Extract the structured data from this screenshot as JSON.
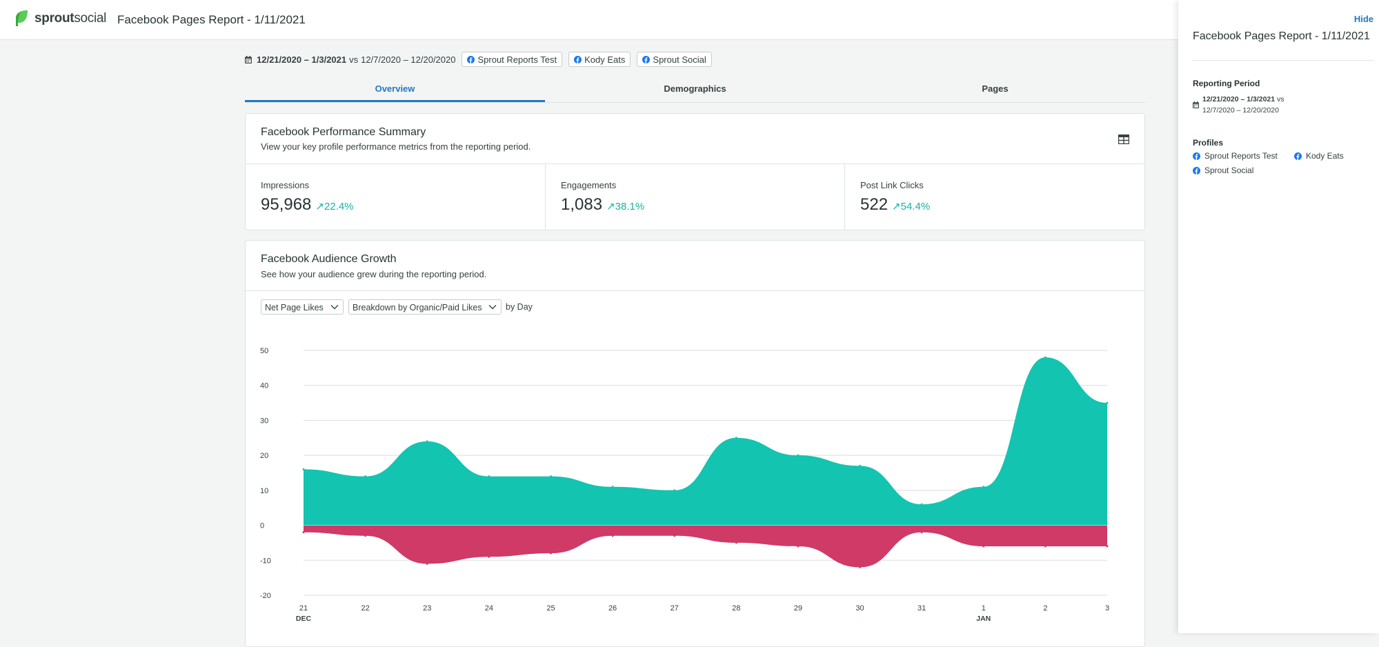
{
  "header": {
    "brand_bold": "sprout",
    "brand_regular": "social",
    "report_title": "Facebook Pages Report - 1/11/2021"
  },
  "filters": {
    "date_range": "12/21/2020 – 1/3/2021",
    "vs": "vs",
    "compare_range": "12/7/2020 – 12/20/2020",
    "profiles": [
      "Sprout Reports Test",
      "Kody Eats",
      "Sprout Social"
    ]
  },
  "tabs": [
    {
      "label": "Overview",
      "active": true
    },
    {
      "label": "Demographics",
      "active": false
    },
    {
      "label": "Pages",
      "active": false
    }
  ],
  "summary": {
    "title": "Facebook Performance Summary",
    "subtitle": "View your key profile performance metrics from the reporting period.",
    "metrics": [
      {
        "label": "Impressions",
        "value": "95,968",
        "change": "22.4%"
      },
      {
        "label": "Engagements",
        "value": "1,083",
        "change": "38.1%"
      },
      {
        "label": "Post Link Clicks",
        "value": "522",
        "change": "54.4%"
      }
    ]
  },
  "growth": {
    "title": "Facebook Audience Growth",
    "subtitle": "See how your audience grew during the reporting period.",
    "metric_select": "Net Page Likes",
    "breakdown_select": "Breakdown by Organic/Paid Likes",
    "by_label": "by Day"
  },
  "chart_data": {
    "type": "area",
    "categories": [
      "21",
      "22",
      "23",
      "24",
      "25",
      "26",
      "27",
      "28",
      "29",
      "30",
      "31",
      "1",
      "2",
      "3"
    ],
    "month_labels": [
      {
        "index": 0,
        "label": "DEC"
      },
      {
        "index": 11,
        "label": "JAN"
      }
    ],
    "ylim": [
      -20,
      50
    ],
    "yticks": [
      50,
      40,
      30,
      20,
      10,
      0,
      -10,
      -20
    ],
    "grid": true,
    "colors": {
      "positive": "#13c4b0",
      "negative": "#cf3a67"
    },
    "series": [
      {
        "values": [
          16,
          14,
          24,
          14,
          14,
          11,
          10,
          25,
          20,
          17,
          6,
          11,
          48,
          35
        ]
      },
      {
        "values": [
          -2,
          -3,
          -11,
          -9,
          -8,
          -3,
          -3,
          -5,
          -6,
          -12,
          -2,
          -6,
          -6,
          -6
        ]
      }
    ]
  },
  "side_panel": {
    "hide": "Hide",
    "title": "Facebook Pages Report - 1/11/2021",
    "period_heading": "Reporting Period",
    "period_primary": "12/21/2020 – 1/3/2021",
    "period_vs": "vs",
    "period_compare": "12/7/2020 – 12/20/2020",
    "profiles_heading": "Profiles",
    "profiles": [
      "Sprout Reports Test",
      "Kody Eats",
      "Sprout Social"
    ]
  },
  "colors": {
    "accent": "#2079c3",
    "positive_change": "#13b5a2",
    "brand_green": "#59cb59"
  }
}
